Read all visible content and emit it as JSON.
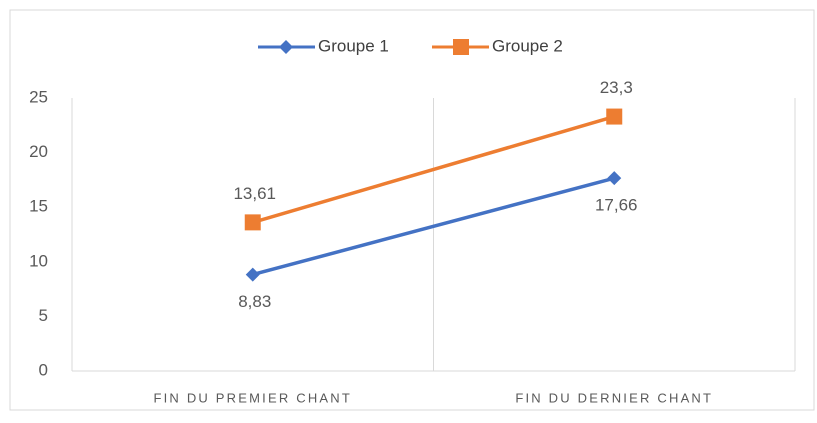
{
  "chart_data": {
    "type": "line",
    "categories": [
      "FIN DU PREMIER CHANT",
      "FIN DU DERNIER CHANT"
    ],
    "series": [
      {
        "name": "Groupe 1",
        "color": "#4472c4",
        "marker": "diamond",
        "values": [
          8.83,
          17.66
        ],
        "value_labels": [
          "8,83",
          "17,66"
        ],
        "label_position": "below"
      },
      {
        "name": "Groupe 2",
        "color": "#ed7d31",
        "marker": "square",
        "values": [
          13.61,
          23.3
        ],
        "value_labels": [
          "13,61",
          "23,3"
        ],
        "label_position": "above"
      }
    ],
    "ylim": [
      0,
      25
    ],
    "yticks": [
      0,
      5,
      10,
      15,
      20,
      25
    ],
    "grid": false,
    "legend": "top"
  }
}
